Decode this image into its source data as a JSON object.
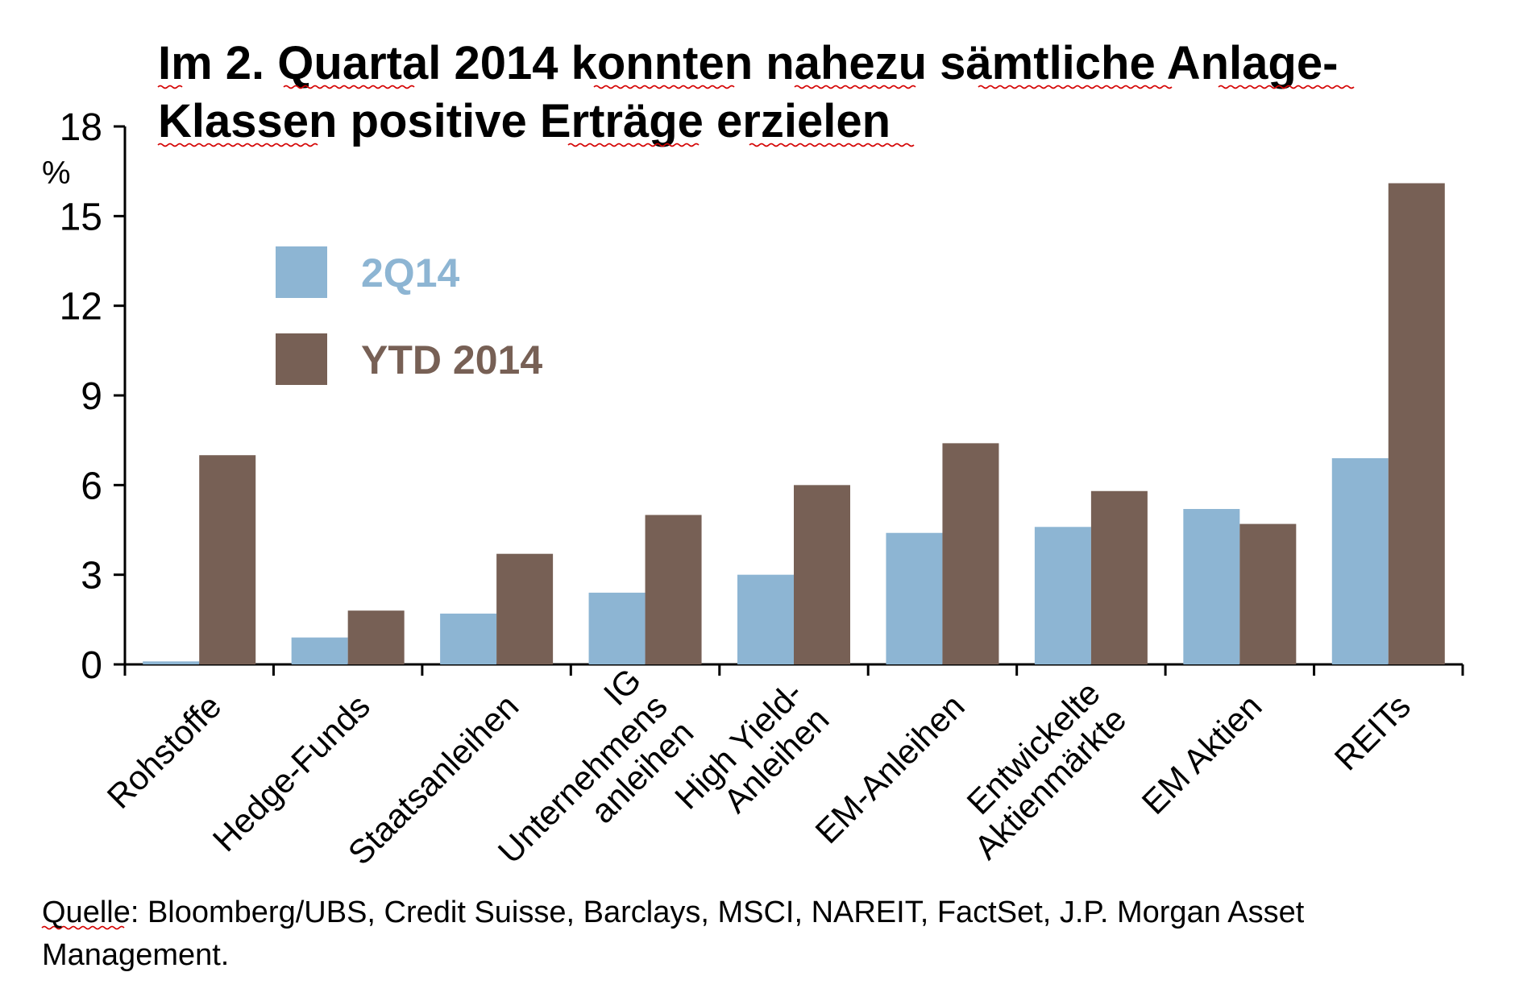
{
  "title": {
    "line1": "Im 2. Quartal 2014 konnten nahezu sämtliche Anlage-",
    "line2": "Klassen positive Erträge erzielen"
  },
  "source": {
    "line1": "Quelle: Bloomberg/UBS, Credit Suisse, Barclays, MSCI, NAREIT, FactSet, J.P. Morgan Asset",
    "line2": "Management."
  },
  "colors": {
    "q2": "#8db5d3",
    "ytd": "#776055",
    "axis": "#000000"
  },
  "chart_data": {
    "type": "bar",
    "title": "Im 2. Quartal 2014 konnten nahezu sämtliche Anlage-Klassen positive Erträge erzielen",
    "ylabel": "%",
    "ylim": [
      0,
      18
    ],
    "yticks": [
      0,
      3,
      6,
      9,
      12,
      15,
      18
    ],
    "grid": false,
    "legend_position": "top-left",
    "categories": [
      [
        "Rohstoffe"
      ],
      [
        "Hedge-Funds"
      ],
      [
        "Staatsanleihen"
      ],
      [
        "IG",
        "Unternehmens",
        "anleihen"
      ],
      [
        "High Yield-",
        "Anleihen"
      ],
      [
        "EM-Anleihen"
      ],
      [
        "Entwickelte",
        "Aktienmärkte"
      ],
      [
        "EM Aktien"
      ],
      [
        "REITs"
      ]
    ],
    "series": [
      {
        "name": "2Q14",
        "color": "#8db5d3",
        "values": [
          0.1,
          0.9,
          1.7,
          2.4,
          3.0,
          4.4,
          4.6,
          5.2,
          6.9
        ]
      },
      {
        "name": "YTD 2014",
        "color": "#776055",
        "values": [
          7.0,
          1.8,
          3.7,
          5.0,
          6.0,
          7.4,
          5.8,
          4.7,
          16.1
        ]
      }
    ]
  }
}
